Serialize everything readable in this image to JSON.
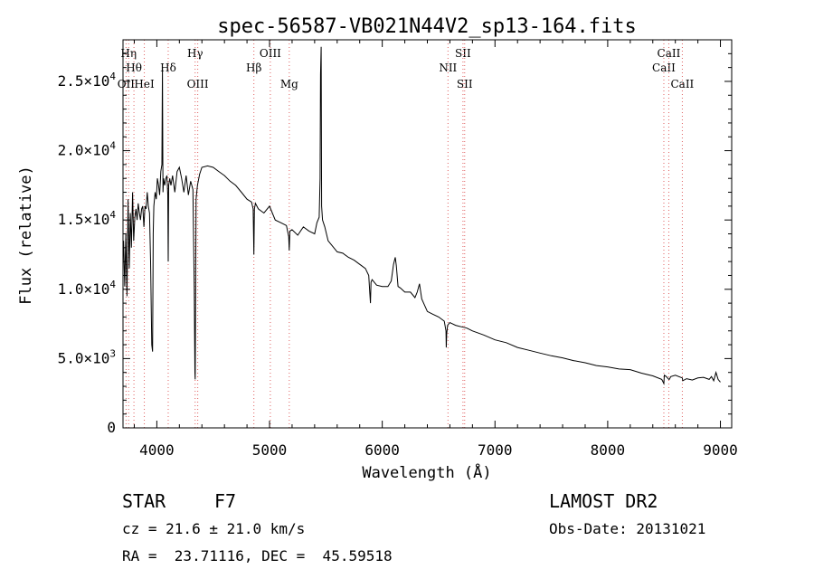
{
  "chart_data": {
    "type": "line",
    "title": "spec-56587-VB021N44V2_sp13-164.fits",
    "xlabel": "Wavelength (Å)",
    "ylabel": "Flux (relative)",
    "xlim": [
      3700,
      9100
    ],
    "ylim": [
      0,
      28000
    ],
    "x_ticks": [
      {
        "value": 4000,
        "label": "4000"
      },
      {
        "value": 5000,
        "label": "5000"
      },
      {
        "value": 6000,
        "label": "6000"
      },
      {
        "value": 7000,
        "label": "7000"
      },
      {
        "value": 8000,
        "label": "8000"
      },
      {
        "value": 9000,
        "label": "9000"
      }
    ],
    "y_ticks": [
      {
        "value": 0,
        "mant": "0",
        "exp": ""
      },
      {
        "value": 5000,
        "mant": "5.0×10",
        "exp": "3"
      },
      {
        "value": 10000,
        "mant": "1.0×10",
        "exp": "4"
      },
      {
        "value": 15000,
        "mant": "1.5×10",
        "exp": "4"
      },
      {
        "value": 20000,
        "mant": "2.0×10",
        "exp": "4"
      },
      {
        "value": 25000,
        "mant": "2.5×10",
        "exp": "4"
      }
    ],
    "grid": false,
    "line_color": "#000000",
    "marker_color": "#e06060",
    "line_markers": [
      {
        "x": 3750,
        "label": "Hη",
        "row": 1
      },
      {
        "x": 3797,
        "label": "Hθ",
        "row": 2
      },
      {
        "x": 3727,
        "label": "OII",
        "row": 3
      },
      {
        "x": 3889,
        "label": "HeI",
        "row": 3
      },
      {
        "x": 4101,
        "label": "Hδ",
        "row": 2
      },
      {
        "x": 4340,
        "label": "Hγ",
        "row": 1
      },
      {
        "x": 4363,
        "label": "OIII",
        "row": 3
      },
      {
        "x": 4861,
        "label": "Hβ",
        "row": 2
      },
      {
        "x": 5007,
        "label": "OIII",
        "row": 1
      },
      {
        "x": 5175,
        "label": "Mg",
        "row": 3
      },
      {
        "x": 6583,
        "label": "NII",
        "row": 2
      },
      {
        "x": 6716,
        "label": "SII",
        "row": 1
      },
      {
        "x": 6731,
        "label": "SII",
        "row": 3
      },
      {
        "x": 8498,
        "label": "CaII",
        "row": 2
      },
      {
        "x": 8542,
        "label": "CaII",
        "row": 1
      },
      {
        "x": 8662,
        "label": "CaII",
        "row": 3
      }
    ],
    "series": [
      {
        "x": [
          3705,
          3715,
          3725,
          3735,
          3745,
          3755,
          3765,
          3775,
          3785,
          3795,
          3805,
          3815,
          3825,
          3835,
          3845,
          3855,
          3865,
          3875,
          3885,
          3895,
          3905,
          3915,
          3925,
          3935,
          3945,
          3955,
          3962,
          3968,
          3974,
          3985,
          3995,
          4005,
          4015,
          4025,
          4035,
          4045,
          4050,
          4055,
          4060,
          4070,
          4080,
          4090,
          4097,
          4101,
          4105,
          4115,
          4125,
          4140,
          4160,
          4180,
          4200,
          4220,
          4240,
          4260,
          4280,
          4300,
          4320,
          4332,
          4338,
          4340,
          4342,
          4348,
          4360,
          4380,
          4400,
          4450,
          4500,
          4550,
          4600,
          4650,
          4700,
          4750,
          4800,
          4840,
          4855,
          4861,
          4866,
          4875,
          4900,
          4950,
          5000,
          5050,
          5100,
          5150,
          5170,
          5175,
          5180,
          5200,
          5250,
          5300,
          5350,
          5400,
          5420,
          5440,
          5448,
          5452,
          5458,
          5462,
          5470,
          5490,
          5520,
          5550,
          5600,
          5650,
          5700,
          5750,
          5800,
          5850,
          5880,
          5890,
          5895,
          5900,
          5910,
          5950,
          6000,
          6050,
          6080,
          6100,
          6115,
          6125,
          6140,
          6160,
          6200,
          6250,
          6290,
          6310,
          6330,
          6350,
          6400,
          6450,
          6500,
          6550,
          6565,
          6568,
          6572,
          6580,
          6600,
          6650,
          6700,
          6750,
          6800,
          6900,
          7000,
          7100,
          7200,
          7300,
          7400,
          7500,
          7600,
          7700,
          7800,
          7900,
          8000,
          8100,
          8200,
          8300,
          8400,
          8480,
          8498,
          8502,
          8520,
          8542,
          8546,
          8560,
          8600,
          8662,
          8666,
          8700,
          8750,
          8800,
          8850,
          8900,
          8920,
          8940,
          8960,
          8980,
          9000
        ],
        "y": [
          13500,
          10200,
          14000,
          9500,
          16500,
          11500,
          15500,
          13000,
          17000,
          13500,
          15200,
          15800,
          15000,
          16200,
          15500,
          15000,
          15800,
          16000,
          14500,
          16000,
          15800,
          17000,
          16000,
          15500,
          12000,
          6000,
          5500,
          14000,
          16000,
          17000,
          16500,
          18000,
          17500,
          16800,
          18500,
          19000,
          26000,
          17000,
          18000,
          17500,
          18000,
          18200,
          16800,
          12000,
          17500,
          18000,
          17500,
          18200,
          17000,
          18500,
          18800,
          18000,
          17000,
          18200,
          16800,
          17800,
          17200,
          10000,
          4000,
          3500,
          6000,
          16500,
          17500,
          18300,
          18800,
          18900,
          18800,
          18500,
          18200,
          17800,
          17500,
          17000,
          16500,
          16300,
          15800,
          12500,
          15800,
          16200,
          15800,
          15500,
          16000,
          15000,
          14800,
          14600,
          13800,
          12800,
          14200,
          14300,
          13900,
          14500,
          14200,
          14000,
          14800,
          15200,
          18000,
          25500,
          27500,
          16000,
          15000,
          14500,
          13500,
          13200,
          12700,
          12600,
          12300,
          12100,
          11800,
          11500,
          11000,
          9700,
          9000,
          10500,
          10700,
          10300,
          10200,
          10200,
          10600,
          11800,
          12300,
          11700,
          10200,
          10100,
          9800,
          9800,
          9400,
          9800,
          10400,
          9300,
          8400,
          8200,
          8000,
          7700,
          7000,
          5800,
          6800,
          7400,
          7600,
          7400,
          7300,
          7200,
          7000,
          6700,
          6350,
          6150,
          5800,
          5600,
          5400,
          5200,
          5050,
          4850,
          4700,
          4500,
          4400,
          4250,
          4200,
          3950,
          3750,
          3500,
          3200,
          3800,
          3700,
          3500,
          3500,
          3700,
          3800,
          3600,
          3400,
          3550,
          3450,
          3600,
          3650,
          3500,
          3700,
          3400,
          4000,
          3500,
          3300
        ]
      }
    ]
  },
  "info": {
    "object_class": "STAR",
    "subclass": "F7",
    "survey": "LAMOST DR2",
    "cz": "cz = 21.6 ± 21.0 km/s",
    "obs_date": "Obs-Date: 20131021",
    "radec": "RA =  23.71116, DEC =  45.59518"
  }
}
